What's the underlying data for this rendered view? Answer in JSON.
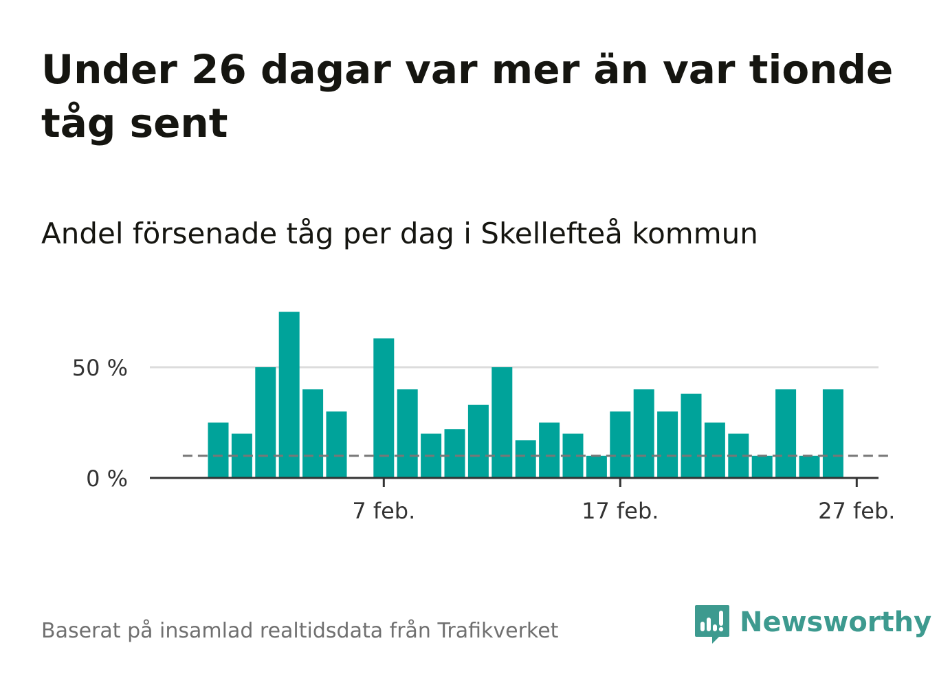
{
  "chart_data": {
    "type": "bar",
    "title": "Under 26 dagar var mer än var tionde tåg sent",
    "subtitle": "Andel försenade tåg per dag i Skellefteå kommun",
    "ylabel": "",
    "xlabel": "",
    "ylim": [
      0,
      90
    ],
    "yticks": [
      {
        "value": 0,
        "label": "0 %"
      },
      {
        "value": 50,
        "label": "50 %"
      }
    ],
    "xticks": [
      {
        "day": 7,
        "label": "7 feb."
      },
      {
        "day": 17,
        "label": "17 feb."
      },
      {
        "day": 27,
        "label": "27 feb."
      }
    ],
    "x_range": [
      -1,
      30
    ],
    "reference_line": {
      "value": 10,
      "from_day": -1.5,
      "to_day": 28.5
    },
    "bar_color": "#00a39a",
    "days": [
      0,
      1,
      2,
      3,
      4,
      5,
      6,
      7,
      8,
      9,
      10,
      11,
      12,
      13,
      14,
      15,
      16,
      17,
      18,
      19,
      20,
      21,
      22,
      23,
      24,
      25,
      26,
      27,
      28
    ],
    "values": [
      25,
      20,
      50,
      75,
      40,
      30,
      0,
      63,
      40,
      20,
      22,
      33,
      50,
      17,
      25,
      20,
      10,
      30,
      40,
      30,
      38,
      25,
      20,
      10,
      40,
      10,
      40,
      null,
      null
    ]
  },
  "footer": {
    "source": "Baserat på insamlad realtidsdata från Trafikverket",
    "brand": "Newsworthy",
    "brand_color": "#3d9a8f"
  }
}
